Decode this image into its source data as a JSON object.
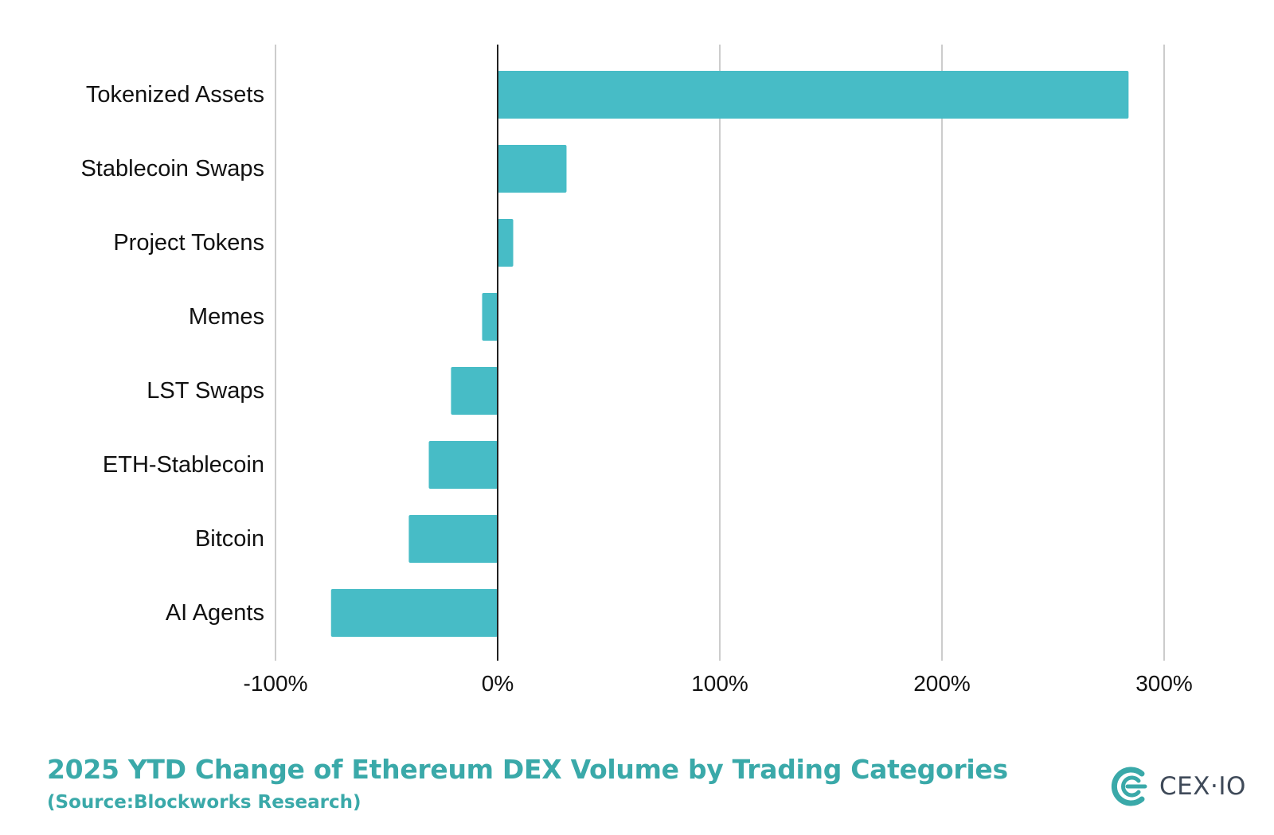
{
  "chart_data": {
    "type": "bar",
    "orientation": "horizontal",
    "categories": [
      "Tokenized Assets",
      "Stablecoin Swaps",
      "Project Tokens",
      "Memes",
      "LST Swaps",
      "ETH-Stablecoin",
      "Bitcoin",
      "AI Agents"
    ],
    "values": [
      284,
      31,
      7,
      -7,
      -21,
      -31,
      -40,
      -75
    ],
    "unit": "%",
    "xlim": [
      -100,
      300
    ],
    "xticks": [
      -100,
      0,
      100,
      200,
      300
    ],
    "xtick_labels": [
      "-100%",
      "0%",
      "100%",
      "200%",
      "300%"
    ],
    "grid": "vertical",
    "legend": "none",
    "bar_color": "#47bcc6"
  },
  "footer": {
    "title": "2025 YTD Change of Ethereum DEX Volume by Trading Categories",
    "source": "(Source:Blockworks Research)",
    "title_color": "#3aa9a9"
  },
  "brand": {
    "name": "CEX·IO",
    "logo_icon": "cex-io-logo-icon",
    "logo_color": "#3aa9a9"
  }
}
